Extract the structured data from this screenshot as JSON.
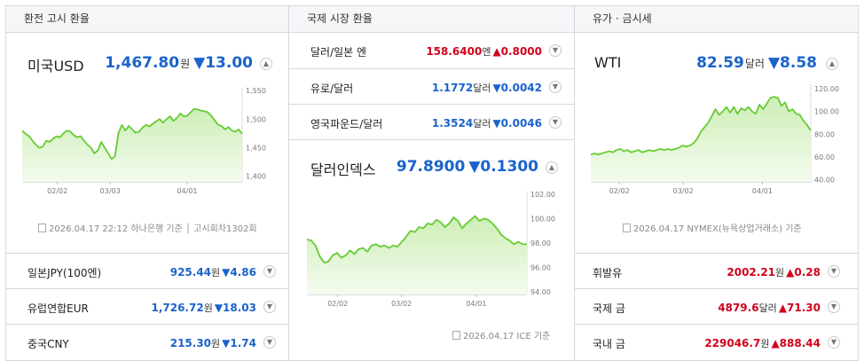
{
  "columns": [
    {
      "header": "환전 고시 환율",
      "main": {
        "name": "미국USD",
        "value": "1,467.80",
        "unit": "원",
        "change": "▼13.00",
        "dir": "down"
      },
      "source": "2026.04.17 22:12 하나은행 기준 │ 고시회차1302회",
      "rows": [
        {
          "name": "일본JPY(100엔)",
          "value": "925.44",
          "unit": "원",
          "change": "▼4.86",
          "dir": "down"
        },
        {
          "name": "유럽연합EUR",
          "value": "1,726.72",
          "unit": "원",
          "change": "▼18.03",
          "dir": "down"
        },
        {
          "name": "중국CNY",
          "value": "215.30",
          "unit": "원",
          "change": "▼1.74",
          "dir": "down"
        }
      ]
    },
    {
      "header": "국제 시장 환율",
      "rows": [
        {
          "name": "달러/일본 엔",
          "value": "158.6400",
          "unit": "엔",
          "change": "▲0.8000",
          "dir": "up"
        },
        {
          "name": "유로/달러",
          "value": "1.1772",
          "unit": "달러",
          "change": "▼0.0042",
          "dir": "down"
        },
        {
          "name": "영국파운드/달러",
          "value": "1.3524",
          "unit": "달러",
          "change": "▼0.0046",
          "dir": "down"
        }
      ],
      "main": {
        "name": "달러인덱스",
        "value": "97.8900",
        "unit": "",
        "change": "▼0.1300",
        "dir": "down"
      },
      "source": "2026.04.17 ICE 기준"
    },
    {
      "header": "유가 · 금시세",
      "main": {
        "name": "WTI",
        "value": "82.59",
        "unit": "달러",
        "change": "▼8.58",
        "dir": "down"
      },
      "source": "2026.04.17 NYMEX(뉴욕상업거래소) 기준",
      "rows": [
        {
          "name": "휘발유",
          "value": "2002.21",
          "unit": "원",
          "change": "▲0.28",
          "dir": "up"
        },
        {
          "name": "국제 금",
          "value": "4879.6",
          "unit": "달러",
          "change": "▲71.30",
          "dir": "up"
        },
        {
          "name": "국내 금",
          "value": "229046.7",
          "unit": "원",
          "change": "▲888.44",
          "dir": "up"
        }
      ]
    }
  ],
  "chart_data": [
    {
      "type": "area",
      "x_ticks": [
        "02/02",
        "03/03",
        "04/01"
      ],
      "y_ticks": [
        1400,
        1450,
        1500,
        1550
      ],
      "ylim": [
        1390,
        1555
      ],
      "color": "#66cc33",
      "values": [
        1480,
        1474,
        1470,
        1462,
        1455,
        1450,
        1452,
        1462,
        1460,
        1466,
        1470,
        1468,
        1475,
        1480,
        1478,
        1472,
        1468,
        1470,
        1462,
        1455,
        1450,
        1440,
        1445,
        1460,
        1450,
        1440,
        1430,
        1435,
        1475,
        1490,
        1480,
        1488,
        1482,
        1476,
        1478,
        1485,
        1490,
        1487,
        1492,
        1496,
        1500,
        1494,
        1500,
        1505,
        1497,
        1502,
        1510,
        1505,
        1506,
        1512,
        1518,
        1517,
        1515,
        1514,
        1512,
        1506,
        1498,
        1490,
        1488,
        1482,
        1486,
        1480,
        1478,
        1482,
        1474
      ]
    },
    {
      "type": "area",
      "x_ticks": [
        "02/02",
        "03/02",
        "04/01"
      ],
      "y_ticks": [
        94,
        96,
        98,
        100,
        102
      ],
      "ylim": [
        93.8,
        102.2
      ],
      "color": "#66cc33",
      "values": [
        98.3,
        98.2,
        97.8,
        96.9,
        96.4,
        96.5,
        97.0,
        97.2,
        96.8,
        97.0,
        97.4,
        97.1,
        97.5,
        97.6,
        97.3,
        97.8,
        97.9,
        97.7,
        97.8,
        97.6,
        97.8,
        97.7,
        98.1,
        98.5,
        99.0,
        98.9,
        99.3,
        99.2,
        99.6,
        99.5,
        99.9,
        99.7,
        99.3,
        99.6,
        100.1,
        99.8,
        99.2,
        99.6,
        99.9,
        100.2,
        99.8,
        100.0,
        99.9,
        99.6,
        99.2,
        98.7,
        98.4,
        98.2,
        97.9,
        98.1,
        97.9,
        97.9
      ]
    },
    {
      "type": "area",
      "x_ticks": [
        "02/02",
        "03/02",
        "04/01"
      ],
      "y_ticks": [
        40,
        60,
        80,
        100,
        120
      ],
      "ylim": [
        38,
        124
      ],
      "color": "#66cc33",
      "values": [
        62,
        63,
        62,
        63,
        64,
        65,
        64,
        66,
        67,
        65,
        66,
        64,
        65,
        66,
        64,
        65,
        66,
        65,
        66,
        67,
        66,
        67,
        66,
        67,
        68,
        70,
        69,
        70,
        72,
        76,
        82,
        86,
        90,
        96,
        102,
        97,
        100,
        104,
        99,
        104,
        98,
        103,
        101,
        104,
        100,
        98,
        106,
        102,
        107,
        112,
        113,
        112,
        105,
        108,
        100,
        102,
        98,
        97,
        92,
        88,
        83
      ]
    }
  ]
}
